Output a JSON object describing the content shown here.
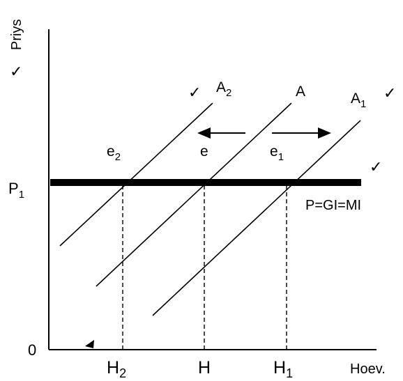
{
  "axes": {
    "y_label": "Priys",
    "x_label": "Hoev.",
    "origin_label": "0"
  },
  "price_line": {
    "label_base": "P",
    "label_sub": "1",
    "equation": "P=GI=MI"
  },
  "supply_curves": [
    {
      "base": "A",
      "sub": "2"
    },
    {
      "base": "A",
      "sub": ""
    },
    {
      "base": "A",
      "sub": "1"
    }
  ],
  "equilibria": [
    {
      "base": "e",
      "sub": "2"
    },
    {
      "base": "e",
      "sub": ""
    },
    {
      "base": "e",
      "sub": "1"
    }
  ],
  "quantities": [
    {
      "base": "H",
      "sub": "2"
    },
    {
      "base": "H",
      "sub": ""
    },
    {
      "base": "H",
      "sub": "1"
    }
  ],
  "marks": {
    "check": "✓"
  }
}
